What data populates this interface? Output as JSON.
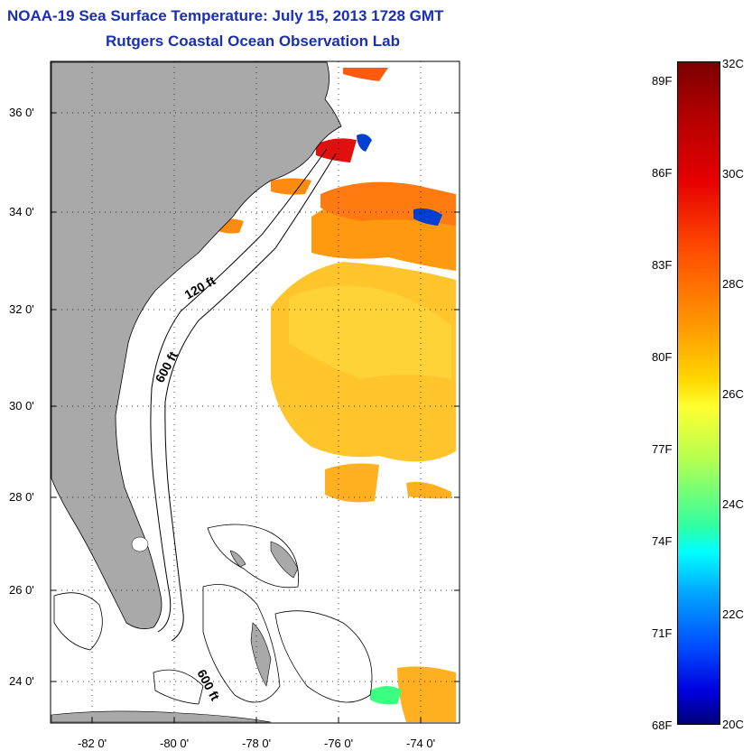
{
  "title_line1": "NOAA-19 Sea Surface Temperature:  July 15, 2013 1728 GMT",
  "title_line2": "Rutgers Coastal Ocean Observation Lab",
  "lat_labels": [
    "36 0'",
    "34 0'",
    "32 0'",
    "30 0'",
    "28 0'",
    "26 0'",
    "24 0'"
  ],
  "lon_labels": [
    "-82 0'",
    "-80 0'",
    "-78 0'",
    "-76 0'",
    "-74 0'"
  ],
  "contour_labels": [
    "120 ft",
    "600 ft",
    "600 ft"
  ],
  "colorbar": {
    "fahrenheit_labels": [
      "89F",
      "86F",
      "83F",
      "80F",
      "77F",
      "74F",
      "71F",
      "68F"
    ],
    "celsius_labels": [
      "32C",
      "30C",
      "28C",
      "26C",
      "24C",
      "22C",
      "20C"
    ],
    "min_c": 20,
    "max_c": 32
  },
  "colors": {
    "land": "#a9a9a9",
    "title": "#1a2fb3",
    "warm": "#ff9900",
    "hot": "#e80000",
    "cool": "#0033cc"
  }
}
